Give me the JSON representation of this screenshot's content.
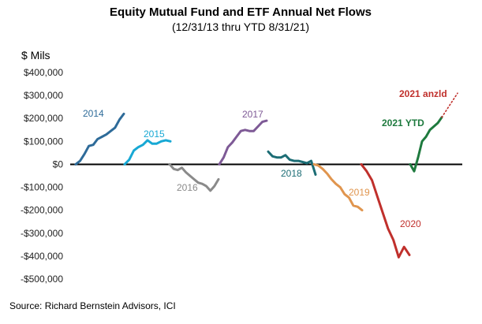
{
  "chart_data": {
    "type": "line",
    "title": "Equity Mutual Fund and ETF Annual Net Flows",
    "subtitle": "(12/31/13 thru YTD 8/31/21)",
    "ylabel": "$ Mils",
    "source": "Source: Richard Bernstein Advisors, ICI",
    "ylim": [
      -500000,
      400000
    ],
    "yticks": [
      400000,
      300000,
      200000,
      100000,
      0,
      -100000,
      -200000,
      -300000,
      -400000,
      -500000
    ],
    "ytick_labels": [
      "$400,000",
      "$300,000",
      "$200,000",
      "$100,000",
      "$0",
      "-$100,000",
      "-$200,000",
      "-$300,000",
      "-$400,000",
      "-$500,000"
    ],
    "series": [
      {
        "name": "2014",
        "color": "#2e6b99",
        "label_bold": false,
        "values": [
          0,
          15000,
          45000,
          80000,
          85000,
          110000,
          120000,
          130000,
          145000,
          160000,
          195000,
          220000
        ]
      },
      {
        "name": "2015",
        "color": "#17a8d4",
        "label_bold": false,
        "values": [
          0,
          20000,
          60000,
          75000,
          85000,
          105000,
          90000,
          90000,
          100000,
          105000,
          100000
        ]
      },
      {
        "name": "2016",
        "color": "#8a8a8a",
        "label_bold": false,
        "values": [
          0,
          -20000,
          -25000,
          -15000,
          -35000,
          -50000,
          -65000,
          -80000,
          -85000,
          -95000,
          -115000,
          -95000,
          -65000
        ]
      },
      {
        "name": "2017",
        "color": "#7e5a96",
        "label_bold": false,
        "values": [
          0,
          30000,
          75000,
          95000,
          120000,
          145000,
          150000,
          145000,
          145000,
          165000,
          185000,
          190000
        ]
      },
      {
        "name": "2018",
        "color": "#1c6d75",
        "label_bold": false,
        "values": [
          55000,
          35000,
          30000,
          30000,
          40000,
          20000,
          15000,
          15000,
          10000,
          5000,
          15000,
          -45000
        ]
      },
      {
        "name": "2019",
        "color": "#e0954e",
        "label_bold": false,
        "values": [
          0,
          -5000,
          -20000,
          -40000,
          -65000,
          -85000,
          -100000,
          -130000,
          -145000,
          -180000,
          -185000,
          -200000
        ]
      },
      {
        "name": "2020",
        "color": "#c0302c",
        "label_bold": false,
        "values": [
          0,
          -30000,
          -70000,
          -140000,
          -210000,
          -280000,
          -330000,
          -405000,
          -360000,
          -395000
        ]
      },
      {
        "name": "2021 YTD",
        "color": "#1e7a3e",
        "label_bold": true,
        "values": [
          0,
          -30000,
          30000,
          100000,
          120000,
          150000,
          165000,
          180000,
          205000
        ]
      },
      {
        "name": "2021 anzld",
        "color": "#c0302c",
        "label_bold": true,
        "dotted": true,
        "values": [
          205000,
          310000
        ]
      }
    ]
  }
}
